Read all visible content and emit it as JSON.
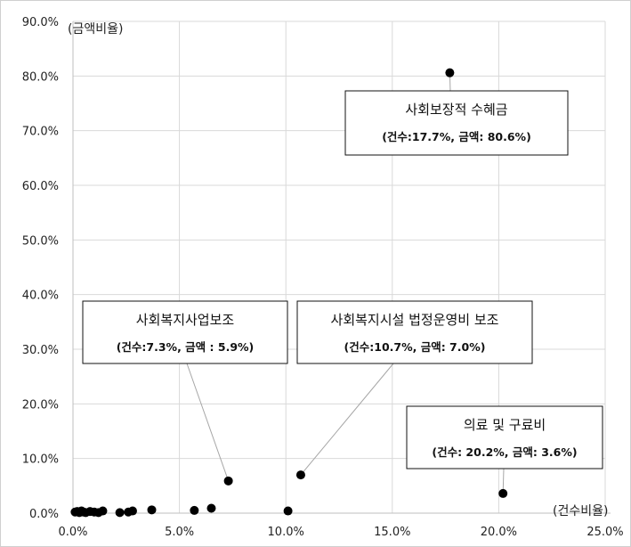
{
  "chart_data": {
    "type": "scatter",
    "xlabel": "(건수비율)",
    "ylabel": "(금액비율)",
    "xlim": [
      0,
      25
    ],
    "ylim": [
      0,
      90
    ],
    "x_ticks": [
      0,
      5,
      10,
      15,
      20,
      25
    ],
    "y_ticks": [
      0,
      10,
      20,
      30,
      40,
      50,
      60,
      70,
      80,
      90
    ],
    "x_tick_labels": [
      "0.0%",
      "5.0%",
      "10.0%",
      "15.0%",
      "20.0%",
      "25.0%"
    ],
    "y_tick_labels": [
      "0.0%",
      "10.0%",
      "20.0%",
      "30.0%",
      "40.0%",
      "50.0%",
      "60.0%",
      "70.0%",
      "80.0%",
      "90.0%"
    ],
    "grid": true,
    "legend": "none",
    "marker_color": "#000000",
    "grid_color": "#d9d9d9",
    "axis_color": "#bfbfbf",
    "points": [
      {
        "x": 0.1,
        "y": 0.2
      },
      {
        "x": 0.2,
        "y": 0.3
      },
      {
        "x": 0.3,
        "y": 0.1
      },
      {
        "x": 0.4,
        "y": 0.4
      },
      {
        "x": 0.5,
        "y": 0.2
      },
      {
        "x": 0.6,
        "y": 0.1
      },
      {
        "x": 0.8,
        "y": 0.3
      },
      {
        "x": 1.0,
        "y": 0.2
      },
      {
        "x": 1.2,
        "y": 0.1
      },
      {
        "x": 1.4,
        "y": 0.4
      },
      {
        "x": 2.2,
        "y": 0.1
      },
      {
        "x": 2.6,
        "y": 0.2
      },
      {
        "x": 2.8,
        "y": 0.4
      },
      {
        "x": 3.7,
        "y": 0.6
      },
      {
        "x": 5.7,
        "y": 0.5
      },
      {
        "x": 6.5,
        "y": 0.9
      },
      {
        "x": 10.1,
        "y": 0.4
      },
      {
        "x": 7.3,
        "y": 5.9
      },
      {
        "x": 10.7,
        "y": 7.0
      },
      {
        "x": 17.7,
        "y": 80.6
      },
      {
        "x": 20.2,
        "y": 3.6
      }
    ],
    "annotations": [
      {
        "title": "사회보장적 수혜금",
        "detail": "(건수:17.7%, 금액: 80.6%)",
        "x": 17.7,
        "y": 80.6
      },
      {
        "title": "사회복지사업보조",
        "detail": "(건수:7.3%, 금액 : 5.9%)",
        "x": 7.3,
        "y": 5.9
      },
      {
        "title": "사회복지시설 법정운영비 보조",
        "detail": "(건수:10.7%, 금액: 7.0%)",
        "x": 10.7,
        "y": 7.0
      },
      {
        "title": "의료 및 구료비",
        "detail": "(건수: 20.2%, 금액: 3.6%)",
        "x": 20.2,
        "y": 3.6
      }
    ]
  }
}
